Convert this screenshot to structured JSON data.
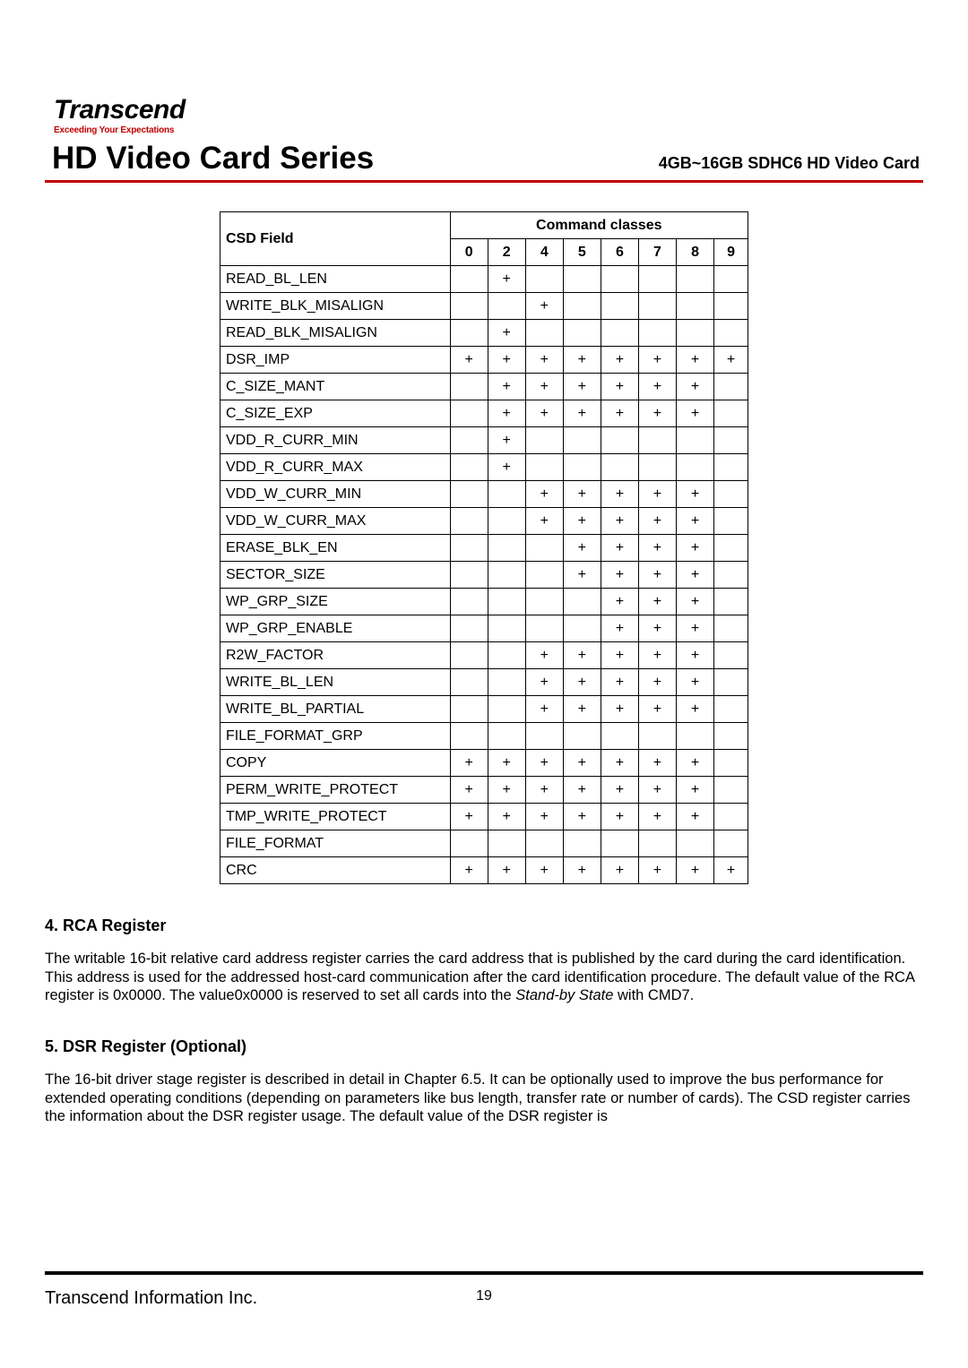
{
  "logo": {
    "brand": "Transcend",
    "tagline": "Exceeding Your Expectations"
  },
  "header": {
    "title": "HD Video Card Series",
    "subtitle": "4GB~16GB SDHC6 HD Video Card"
  },
  "table": {
    "group_header": "Command classes",
    "field_header": "CSD Field",
    "columns": [
      "0",
      "2",
      "4",
      "5",
      "6",
      "7",
      "8",
      "9"
    ],
    "mark": "+",
    "rows": [
      {
        "name": "READ_BL_LEN",
        "cells": [
          "",
          "+",
          "",
          "",
          "",
          "",
          "",
          ""
        ]
      },
      {
        "name": "WRITE_BLK_MISALIGN",
        "cells": [
          "",
          "",
          "+",
          "",
          "",
          "",
          "",
          ""
        ]
      },
      {
        "name": "READ_BLK_MISALIGN",
        "cells": [
          "",
          "+",
          "",
          "",
          "",
          "",
          "",
          ""
        ]
      },
      {
        "name": "DSR_IMP",
        "cells": [
          "+",
          "+",
          "+",
          "+",
          "+",
          "+",
          "+",
          "+"
        ]
      },
      {
        "name": "C_SIZE_MANT",
        "cells": [
          "",
          "+",
          "+",
          "+",
          "+",
          "+",
          "+",
          ""
        ]
      },
      {
        "name": "C_SIZE_EXP",
        "cells": [
          "",
          "+",
          "+",
          "+",
          "+",
          "+",
          "+",
          ""
        ]
      },
      {
        "name": "VDD_R_CURR_MIN",
        "cells": [
          "",
          "+",
          "",
          "",
          "",
          "",
          "",
          ""
        ]
      },
      {
        "name": "VDD_R_CURR_MAX",
        "cells": [
          "",
          "+",
          "",
          "",
          "",
          "",
          "",
          ""
        ]
      },
      {
        "name": "VDD_W_CURR_MIN",
        "cells": [
          "",
          "",
          "+",
          "+",
          "+",
          "+",
          "+",
          ""
        ]
      },
      {
        "name": "VDD_W_CURR_MAX",
        "cells": [
          "",
          "",
          "+",
          "+",
          "+",
          "+",
          "+",
          ""
        ]
      },
      {
        "name": "ERASE_BLK_EN",
        "cells": [
          "",
          "",
          "",
          "+",
          "+",
          "+",
          "+",
          ""
        ]
      },
      {
        "name": "SECTOR_SIZE",
        "cells": [
          "",
          "",
          "",
          "+",
          "+",
          "+",
          "+",
          ""
        ]
      },
      {
        "name": "WP_GRP_SIZE",
        "cells": [
          "",
          "",
          "",
          "",
          "+",
          "+",
          "+",
          ""
        ]
      },
      {
        "name": "WP_GRP_ENABLE",
        "cells": [
          "",
          "",
          "",
          "",
          "+",
          "+",
          "+",
          ""
        ]
      },
      {
        "name": "R2W_FACTOR",
        "cells": [
          "",
          "",
          "+",
          "+",
          "+",
          "+",
          "+",
          ""
        ]
      },
      {
        "name": "WRITE_BL_LEN",
        "cells": [
          "",
          "",
          "+",
          "+",
          "+",
          "+",
          "+",
          ""
        ]
      },
      {
        "name": "WRITE_BL_PARTIAL",
        "cells": [
          "",
          "",
          "+",
          "+",
          "+",
          "+",
          "+",
          ""
        ]
      },
      {
        "name": "FILE_FORMAT_GRP",
        "cells": [
          "",
          "",
          "",
          "",
          "",
          "",
          "",
          ""
        ]
      },
      {
        "name": "COPY",
        "cells": [
          "+",
          "+",
          "+",
          "+",
          "+",
          "+",
          "+",
          ""
        ]
      },
      {
        "name": "PERM_WRITE_PROTECT",
        "cells": [
          "+",
          "+",
          "+",
          "+",
          "+",
          "+",
          "+",
          ""
        ]
      },
      {
        "name": "TMP_WRITE_PROTECT",
        "cells": [
          "+",
          "+",
          "+",
          "+",
          "+",
          "+",
          "+",
          ""
        ]
      },
      {
        "name": "FILE_FORMAT",
        "cells": [
          "",
          "",
          "",
          "",
          "",
          "",
          "",
          ""
        ]
      },
      {
        "name": "CRC",
        "cells": [
          "+",
          "+",
          "+",
          "+",
          "+",
          "+",
          "+",
          "+"
        ]
      }
    ]
  },
  "sections": {
    "rca": {
      "heading": "4. RCA Register",
      "body_pre": "The writable 16-bit relative card address register carries the card address that is published by the card during the card identification. This address is used for the addressed host-card communication after the card identification procedure. The default value of the RCA register is 0x0000. The value0x0000 is reserved to set all cards into the ",
      "body_italic": "Stand-by State",
      "body_post": " with CMD7."
    },
    "dsr": {
      "heading": "5. DSR Register (Optional)",
      "body": "The 16-bit driver stage register is described in detail in Chapter 6.5. It can be optionally used to improve the bus performance for extended operating conditions (depending on parameters like bus length, transfer rate or number of cards). The CSD register carries the information about the DSR register usage. The default value of the DSR register is"
    }
  },
  "footer": {
    "company": "Transcend Information Inc.",
    "page": "19"
  }
}
